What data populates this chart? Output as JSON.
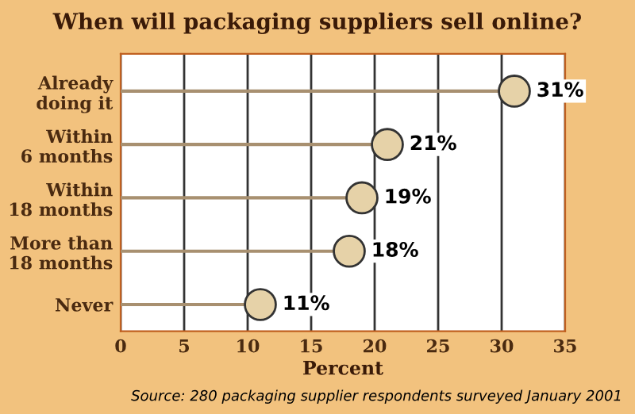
{
  "chart_data": {
    "type": "lollipop",
    "orientation": "horizontal",
    "title": "When will packaging suppliers sell online?",
    "xlabel": "Percent",
    "categories": [
      "Already\ndoing it",
      "Within\n6 months",
      "Within\n18 months",
      "More than\n18 months",
      "Never"
    ],
    "values": [
      31,
      21,
      19,
      18,
      11
    ],
    "value_labels": [
      "31%",
      "21%",
      "19%",
      "18%",
      "11%"
    ],
    "color": "#e6d2a8",
    "marker": "circle",
    "xlim": [
      0,
      35
    ],
    "xticks": [
      0,
      5,
      10,
      15,
      20,
      25,
      30,
      35
    ],
    "grid": "x",
    "annotations": [
      "Source: 280 packaging supplier respondents surveyed January 2001"
    ]
  }
}
